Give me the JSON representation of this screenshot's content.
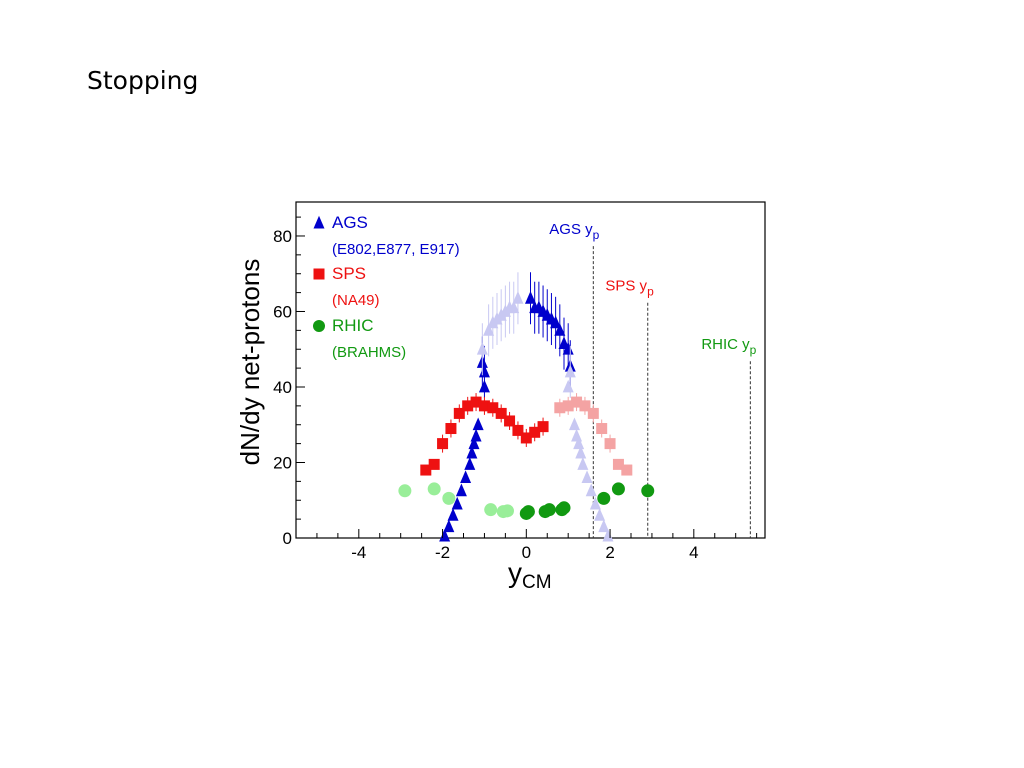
{
  "slide": {
    "title": "Stopping"
  },
  "chart_data": {
    "type": "scatter",
    "xlabel": "y",
    "xlabel_sub": "CM",
    "ylabel": "dN/dy net-protons",
    "xlim": [
      -5.5,
      5.7
    ],
    "ylim": [
      0,
      89
    ],
    "xticks": [
      -4,
      -2,
      0,
      2,
      4
    ],
    "yticks": [
      0,
      20,
      40,
      60,
      80
    ],
    "legend_position": "top-left",
    "legend": [
      {
        "label": "AGS",
        "sub": "(E802,E877, E917)",
        "marker": "triangle",
        "color": "#0000cc"
      },
      {
        "label": "SPS",
        "sub": "(NA49)",
        "marker": "square",
        "color": "#ee1111"
      },
      {
        "label": "RHIC",
        "sub": "(BRAHMS)",
        "marker": "circle",
        "color": "#119911"
      }
    ],
    "beam_rapidity": [
      {
        "label": "AGS y",
        "sub": "p",
        "x": 1.6,
        "color": "#0000cc"
      },
      {
        "label": "SPS y",
        "sub": "p",
        "x": 2.9,
        "color": "#ee1111"
      },
      {
        "label": "RHIC  y",
        "sub": "p",
        "x": 5.35,
        "color": "#119911"
      }
    ],
    "series": [
      {
        "key": "ags_measured",
        "marker": "triangle",
        "color": "#0000cc",
        "points": [
          [
            -1.95,
            0.5
          ],
          [
            -1.85,
            3
          ],
          [
            -1.75,
            6
          ],
          [
            -1.65,
            9
          ],
          [
            -1.55,
            12.5
          ],
          [
            -1.45,
            16
          ],
          [
            -1.35,
            19.5
          ],
          [
            -1.3,
            22.5
          ],
          [
            -1.25,
            25
          ],
          [
            -1.2,
            27
          ],
          [
            -1.15,
            30
          ],
          [
            -1.0,
            40
          ],
          [
            -1.0,
            44
          ],
          [
            -1.05,
            46.5
          ],
          [
            0.1,
            63.5
          ],
          [
            0.2,
            61
          ],
          [
            0.3,
            61
          ],
          [
            0.4,
            60
          ],
          [
            0.5,
            59
          ],
          [
            0.6,
            58
          ],
          [
            0.7,
            57
          ],
          [
            0.8,
            55
          ],
          [
            0.9,
            51.5
          ],
          [
            1.0,
            50
          ],
          [
            1.05,
            45.5
          ]
        ]
      },
      {
        "key": "ags_reflected",
        "marker": "triangle",
        "color": "#c8c8f2",
        "points": [
          [
            -1.05,
            50
          ],
          [
            -0.9,
            55
          ],
          [
            -0.8,
            57
          ],
          [
            -0.7,
            58
          ],
          [
            -0.6,
            59
          ],
          [
            -0.5,
            60
          ],
          [
            -0.4,
            61
          ],
          [
            -0.3,
            61
          ],
          [
            -0.2,
            63.5
          ],
          [
            1.0,
            40
          ],
          [
            1.05,
            44
          ],
          [
            1.15,
            30
          ],
          [
            1.2,
            27
          ],
          [
            1.25,
            25
          ],
          [
            1.3,
            22.5
          ],
          [
            1.35,
            19.5
          ],
          [
            1.45,
            16
          ],
          [
            1.55,
            12.5
          ],
          [
            1.65,
            9
          ],
          [
            1.75,
            6
          ],
          [
            1.85,
            3
          ],
          [
            1.95,
            0.5
          ]
        ]
      },
      {
        "key": "sps_measured",
        "marker": "square",
        "color": "#ee1111",
        "points": [
          [
            -2.4,
            18
          ],
          [
            -2.2,
            19.5
          ],
          [
            -2.0,
            25
          ],
          [
            -1.8,
            29
          ],
          [
            -1.6,
            33
          ],
          [
            -1.4,
            35
          ],
          [
            -1.2,
            36
          ],
          [
            -1.0,
            35
          ],
          [
            -0.8,
            34.5
          ],
          [
            -0.6,
            33
          ],
          [
            -0.4,
            31
          ],
          [
            -0.2,
            28.5
          ],
          [
            0.0,
            26.5
          ],
          [
            0.2,
            28
          ],
          [
            0.4,
            29.5
          ]
        ]
      },
      {
        "key": "sps_reflected",
        "marker": "square",
        "color": "#f4a3a3",
        "points": [
          [
            0.8,
            34.5
          ],
          [
            1.0,
            35
          ],
          [
            1.2,
            36
          ],
          [
            1.4,
            35
          ],
          [
            1.6,
            33
          ],
          [
            1.8,
            29
          ],
          [
            2.0,
            25
          ],
          [
            2.2,
            19.5
          ],
          [
            2.4,
            18
          ]
        ]
      },
      {
        "key": "rhic_measured",
        "marker": "circle",
        "color": "#119911",
        "points": [
          [
            0.0,
            6.5
          ],
          [
            0.05,
            7
          ],
          [
            0.45,
            7
          ],
          [
            0.55,
            7.5
          ],
          [
            0.85,
            7.5
          ],
          [
            0.9,
            8
          ],
          [
            1.85,
            10.5
          ],
          [
            2.2,
            13
          ],
          [
            2.9,
            12.5
          ]
        ]
      },
      {
        "key": "rhic_reflected",
        "marker": "circle",
        "color": "#99ee99",
        "points": [
          [
            -0.85,
            7.5
          ],
          [
            -0.55,
            7
          ],
          [
            -0.45,
            7.2
          ],
          [
            -1.85,
            10.5
          ],
          [
            -2.2,
            13
          ],
          [
            -2.9,
            12.5
          ]
        ]
      }
    ]
  }
}
